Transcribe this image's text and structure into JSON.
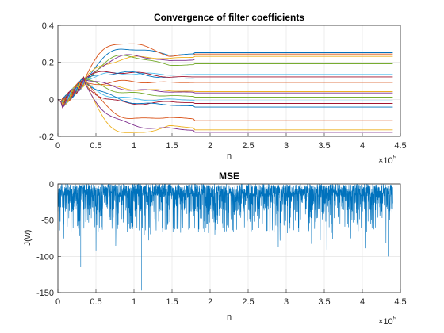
{
  "figure": {
    "background": "#ffffff",
    "grid_color": "#dfdfdf",
    "axis_color": "#262626"
  },
  "chart_data": [
    {
      "type": "line",
      "title": "Convergence of filter coefficients",
      "xlabel": "n",
      "ylabel": "",
      "xlim": [
        0,
        4.5
      ],
      "ylim": [
        -0.2,
        0.4
      ],
      "x_multiplier": "×10",
      "x_multiplier_exponent": "5",
      "xticks": [
        0,
        0.5,
        1,
        1.5,
        2,
        2.5,
        3,
        3.5,
        4,
        4.5
      ],
      "xtick_labels": [
        "0",
        "0.5",
        "1",
        "1.5",
        "2",
        "2.5",
        "3",
        "3.5",
        "4",
        "4.5"
      ],
      "yticks": [
        -0.2,
        0,
        0.2,
        0.4
      ],
      "ytick_labels": [
        "-0.2",
        "0",
        "0.2",
        "0.4"
      ],
      "grid": true,
      "legend": "none",
      "x_end": 4.4,
      "coefficient_final_values": [
        0.252,
        0.245,
        0.232,
        0.218,
        0.192,
        0.135,
        0.122,
        0.115,
        0.092,
        0.042,
        0.035,
        0.012,
        -0.008,
        -0.022,
        -0.042,
        -0.115,
        -0.165,
        -0.178
      ],
      "colors": [
        "#0072bd",
        "#d95319",
        "#edb120",
        "#7e2f8e",
        "#77ac30",
        "#4dbeee",
        "#a2142f"
      ]
    },
    {
      "type": "line",
      "title": "MSE",
      "xlabel": "n",
      "ylabel": "J(w)",
      "xlim": [
        0,
        4.5
      ],
      "ylim": [
        -150,
        0
      ],
      "x_multiplier": "×10",
      "x_multiplier_exponent": "5",
      "xticks": [
        0,
        0.5,
        1,
        1.5,
        2,
        2.5,
        3,
        3.5,
        4,
        4.5
      ],
      "xtick_labels": [
        "0",
        "0.5",
        "1",
        "1.5",
        "2",
        "2.5",
        "3",
        "3.5",
        "4",
        "4.5"
      ],
      "yticks": [
        -150,
        -100,
        -50,
        0
      ],
      "ytick_labels": [
        "-150",
        "-100",
        "-50",
        "0"
      ],
      "grid": true,
      "legend": "none",
      "x_end": 4.4,
      "dense_floor": -38,
      "notable_dips": [
        {
          "x": 0.3,
          "y": -115
        },
        {
          "x": 1.1,
          "y": -147
        },
        {
          "x": 4.35,
          "y": -100
        }
      ],
      "color": "#0072bd"
    }
  ]
}
